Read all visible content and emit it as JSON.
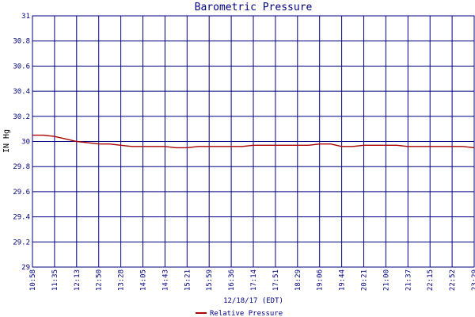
{
  "chart_data": {
    "type": "line",
    "title": "Barometric Pressure",
    "xlabel": "12/18/17 (EDT)",
    "ylabel": "IN Hg",
    "ylim": [
      29,
      31
    ],
    "yticks": [
      29,
      29.2,
      29.4,
      29.6,
      29.8,
      30,
      30.2,
      30.4,
      30.6,
      30.8,
      31
    ],
    "ytick_labels": [
      "29",
      "29.2",
      "29.4",
      "29.6",
      "29.8",
      "30",
      "30.2",
      "30.4",
      "30.6",
      "30.8",
      "31"
    ],
    "xtick_labels": [
      "10:58",
      "11:35",
      "12:13",
      "12:50",
      "13:28",
      "14:05",
      "14:43",
      "15:21",
      "15:59",
      "16:36",
      "17:14",
      "17:51",
      "18:29",
      "19:06",
      "19:44",
      "20:21",
      "21:00",
      "21:37",
      "22:15",
      "22:52",
      "23:29"
    ],
    "grid": true,
    "legend_position": "bottom-center",
    "series": [
      {
        "name": "Relative Pressure",
        "color": "#aa0000",
        "x_tick_index": [
          0,
          0.5,
          1,
          1.5,
          2,
          2.5,
          3,
          3.5,
          4,
          4.5,
          5,
          5.5,
          6,
          6.5,
          7,
          7.5,
          8,
          8.5,
          9,
          9.5,
          10,
          10.5,
          11,
          11.5,
          12,
          12.5,
          13,
          13.5,
          14,
          14.5,
          15,
          15.5,
          16,
          16.5,
          17,
          17.5,
          18,
          18.5,
          19,
          19.5,
          20
        ],
        "values": [
          30.05,
          30.05,
          30.04,
          30.02,
          30.0,
          29.99,
          29.98,
          29.98,
          29.97,
          29.96,
          29.96,
          29.96,
          29.96,
          29.95,
          29.95,
          29.96,
          29.96,
          29.96,
          29.96,
          29.96,
          29.97,
          29.97,
          29.97,
          29.97,
          29.97,
          29.97,
          29.98,
          29.98,
          29.96,
          29.96,
          29.97,
          29.97,
          29.97,
          29.97,
          29.96,
          29.96,
          29.96,
          29.96,
          29.96,
          29.96,
          29.95
        ]
      }
    ]
  }
}
